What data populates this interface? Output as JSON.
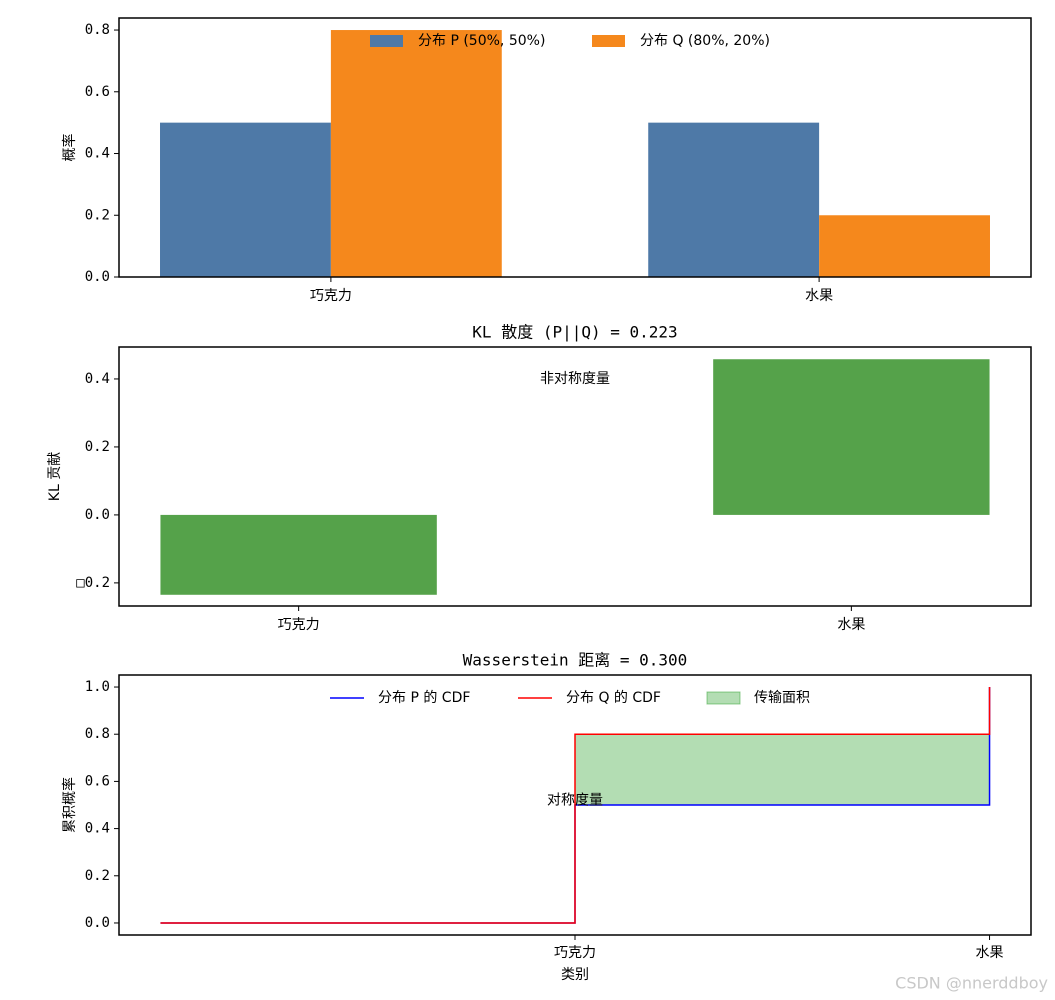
{
  "chart_data": [
    {
      "type": "bar",
      "ylabel": "概率",
      "categories": [
        "巧克力",
        "水果"
      ],
      "series": [
        {
          "name": "分布 P (50%, 50%)",
          "color": "#4e79a7",
          "values": [
            0.5,
            0.5
          ]
        },
        {
          "name": "分布 Q (80%, 20%)",
          "color": "#f5881c",
          "values": [
            0.8,
            0.2
          ]
        }
      ],
      "ylim": [
        0,
        0.839
      ],
      "yticks": [
        {
          "value": 0,
          "label": "0.0"
        },
        0.2,
        0.4,
        0.6,
        0.8
      ],
      "legend": "upper center"
    },
    {
      "type": "bar",
      "title": "KL 散度 (P||Q) = 0.223",
      "ylabel": "KL 贡献",
      "categories": [
        "巧克力",
        "水果"
      ],
      "values": [
        -0.235,
        0.458
      ],
      "color": "#55a24a",
      "ylim": [
        -0.268,
        0.494
      ],
      "yticks": [
        {
          "value": -0.2,
          "label": "□0.2"
        },
        {
          "value": 0,
          "label": "0.0"
        },
        0.2,
        0.4
      ],
      "annotation": "非对称度量"
    },
    {
      "type": "step",
      "title": "Wasserstein 距离 = 0.300",
      "xlabel": "类别",
      "ylabel": "累积概率",
      "x": [
        -1,
        0,
        1
      ],
      "series": [
        {
          "name": "分布 P 的 CDF",
          "color": "#0000ff",
          "values": [
            0,
            0.5,
            1.0
          ]
        },
        {
          "name": "分布 Q 的 CDF",
          "color": "#ff0000",
          "values": [
            0,
            0.8,
            1.0
          ]
        }
      ],
      "fill": {
        "name": "传输面积",
        "color": "#2ca02c",
        "opacity": 0.36
      },
      "xlim": [
        -1.1,
        1.1
      ],
      "xticks": [
        {
          "value": 0,
          "label": "巧克力"
        },
        {
          "value": 1,
          "label": "水果"
        }
      ],
      "ylim": [
        -0.051,
        1.051
      ],
      "yticks": [
        {
          "value": 0,
          "label": "0.0"
        },
        0.2,
        0.4,
        0.6,
        0.8,
        {
          "value": 1,
          "label": "1.0"
        }
      ],
      "annotation": "对称度量",
      "legend": "upper center"
    }
  ],
  "watermark": "CSDN @nnerddboy"
}
